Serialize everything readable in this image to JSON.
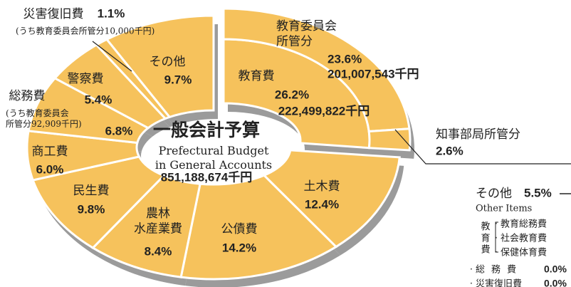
{
  "chart_data": {
    "type": "donut",
    "title": "一般会計予算",
    "subtitle": "Prefectural Budget\nin General Accounts",
    "total": "851,188,674千円",
    "color": "#f6c25c",
    "shadow_color": "#9b9b9b",
    "categories": [
      "教育費",
      "土木費",
      "公債費",
      "農林\n水産業費",
      "民生費",
      "商工費",
      "総務費",
      "警察費",
      "災害復旧費",
      "その他"
    ],
    "values": [
      26.2,
      12.4,
      14.2,
      8.4,
      9.8,
      6.0,
      6.8,
      5.4,
      1.1,
      9.7
    ],
    "value_labels": [
      "26.2%",
      "12.4%",
      "14.2%",
      "8.4%",
      "9.8%",
      "6.0%",
      "6.8%",
      "5.4%",
      "1.1%",
      "9.7%"
    ],
    "education_amount": "222,499,822千円",
    "education_breakdown": [
      {
        "name": "教育委員会\n所管分",
        "value": 23.6,
        "value_label": "23.6%",
        "amount": "201,007,543千円"
      },
      {
        "name": "知事部局所管分",
        "value": 2.6,
        "value_label": "2.6%"
      }
    ],
    "annotations": [
      "(うち教育委員会所管分10,000千円)",
      "(うち教育委員会\n所管分92,909千円)"
    ],
    "other_items": {
      "name": "その他",
      "value": 5.5,
      "value_label": "5.5%",
      "subtitle": "Other Items",
      "group": "教\n育\n費",
      "items": [
        {
          "name": "教育総務費"
        },
        {
          "name": "社会教育費"
        },
        {
          "name": "保健体育費"
        },
        {
          "name": "総務費",
          "value": 0.0,
          "value_label": "0.0%"
        },
        {
          "name": "災害復旧費",
          "value": 0.0,
          "value_label": "0.0%"
        }
      ]
    }
  }
}
